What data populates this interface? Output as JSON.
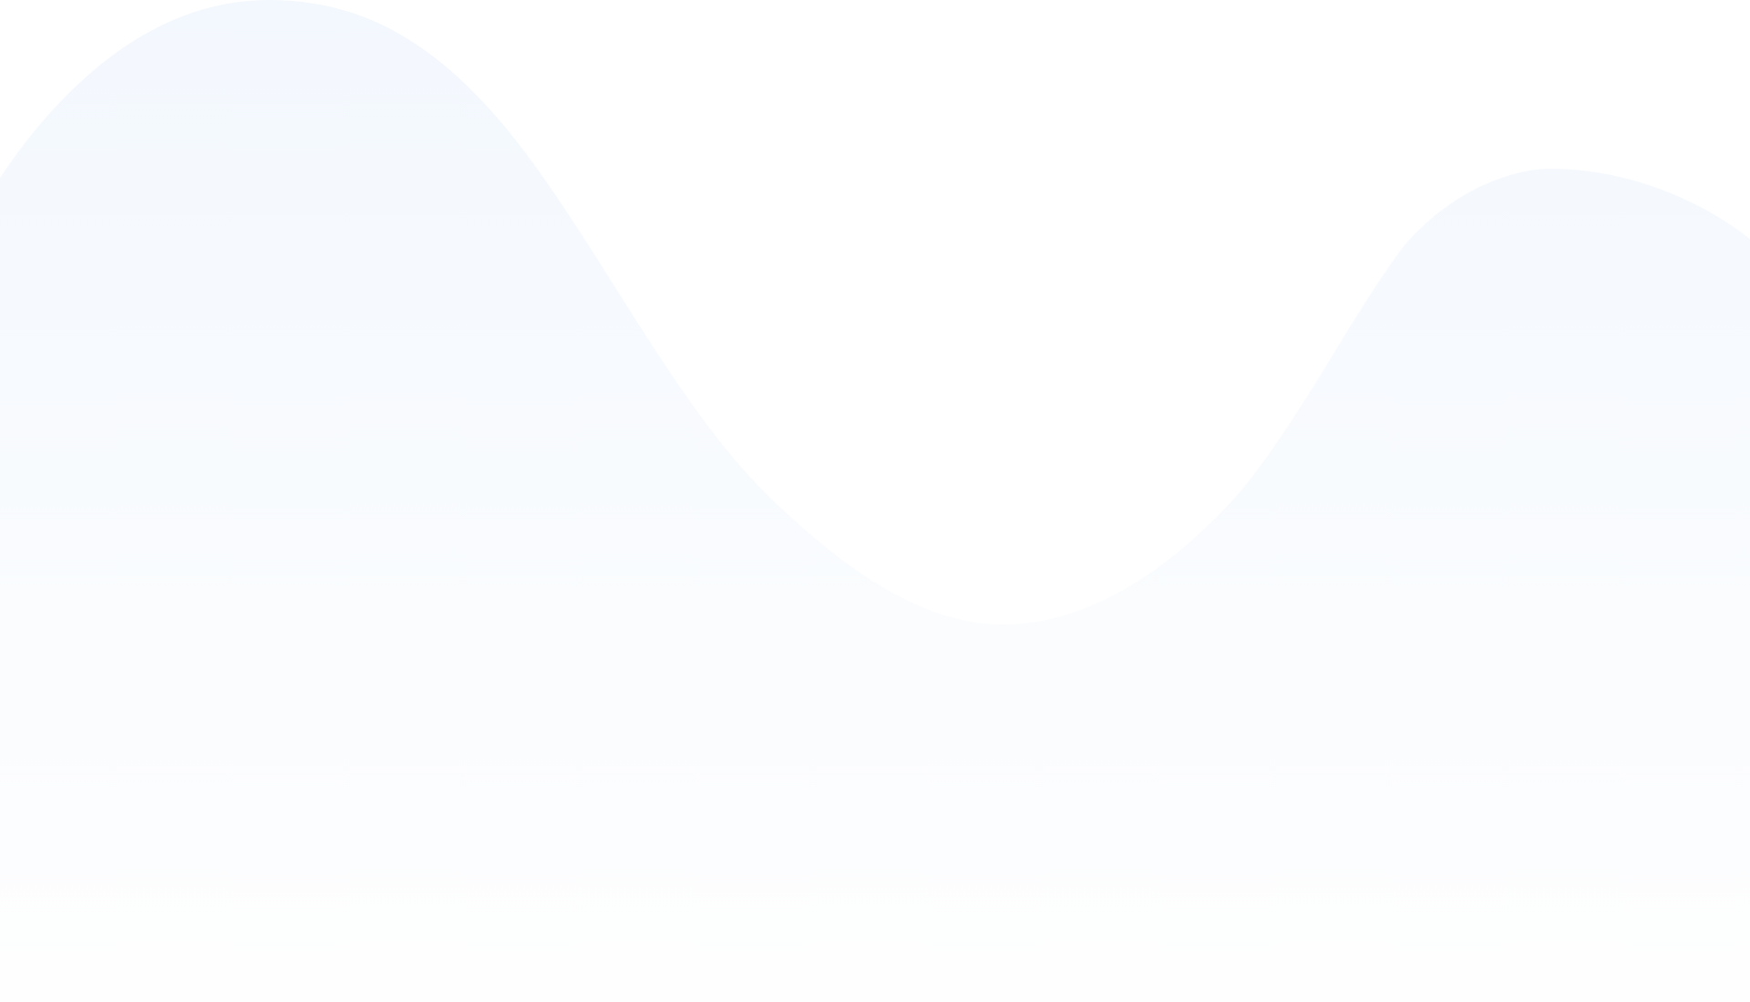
{
  "background": {
    "page_color": "#ffffff",
    "wave": {
      "gradient_top_color": "#f3f8fe",
      "gradient_bottom_color": "#fefefe"
    }
  }
}
